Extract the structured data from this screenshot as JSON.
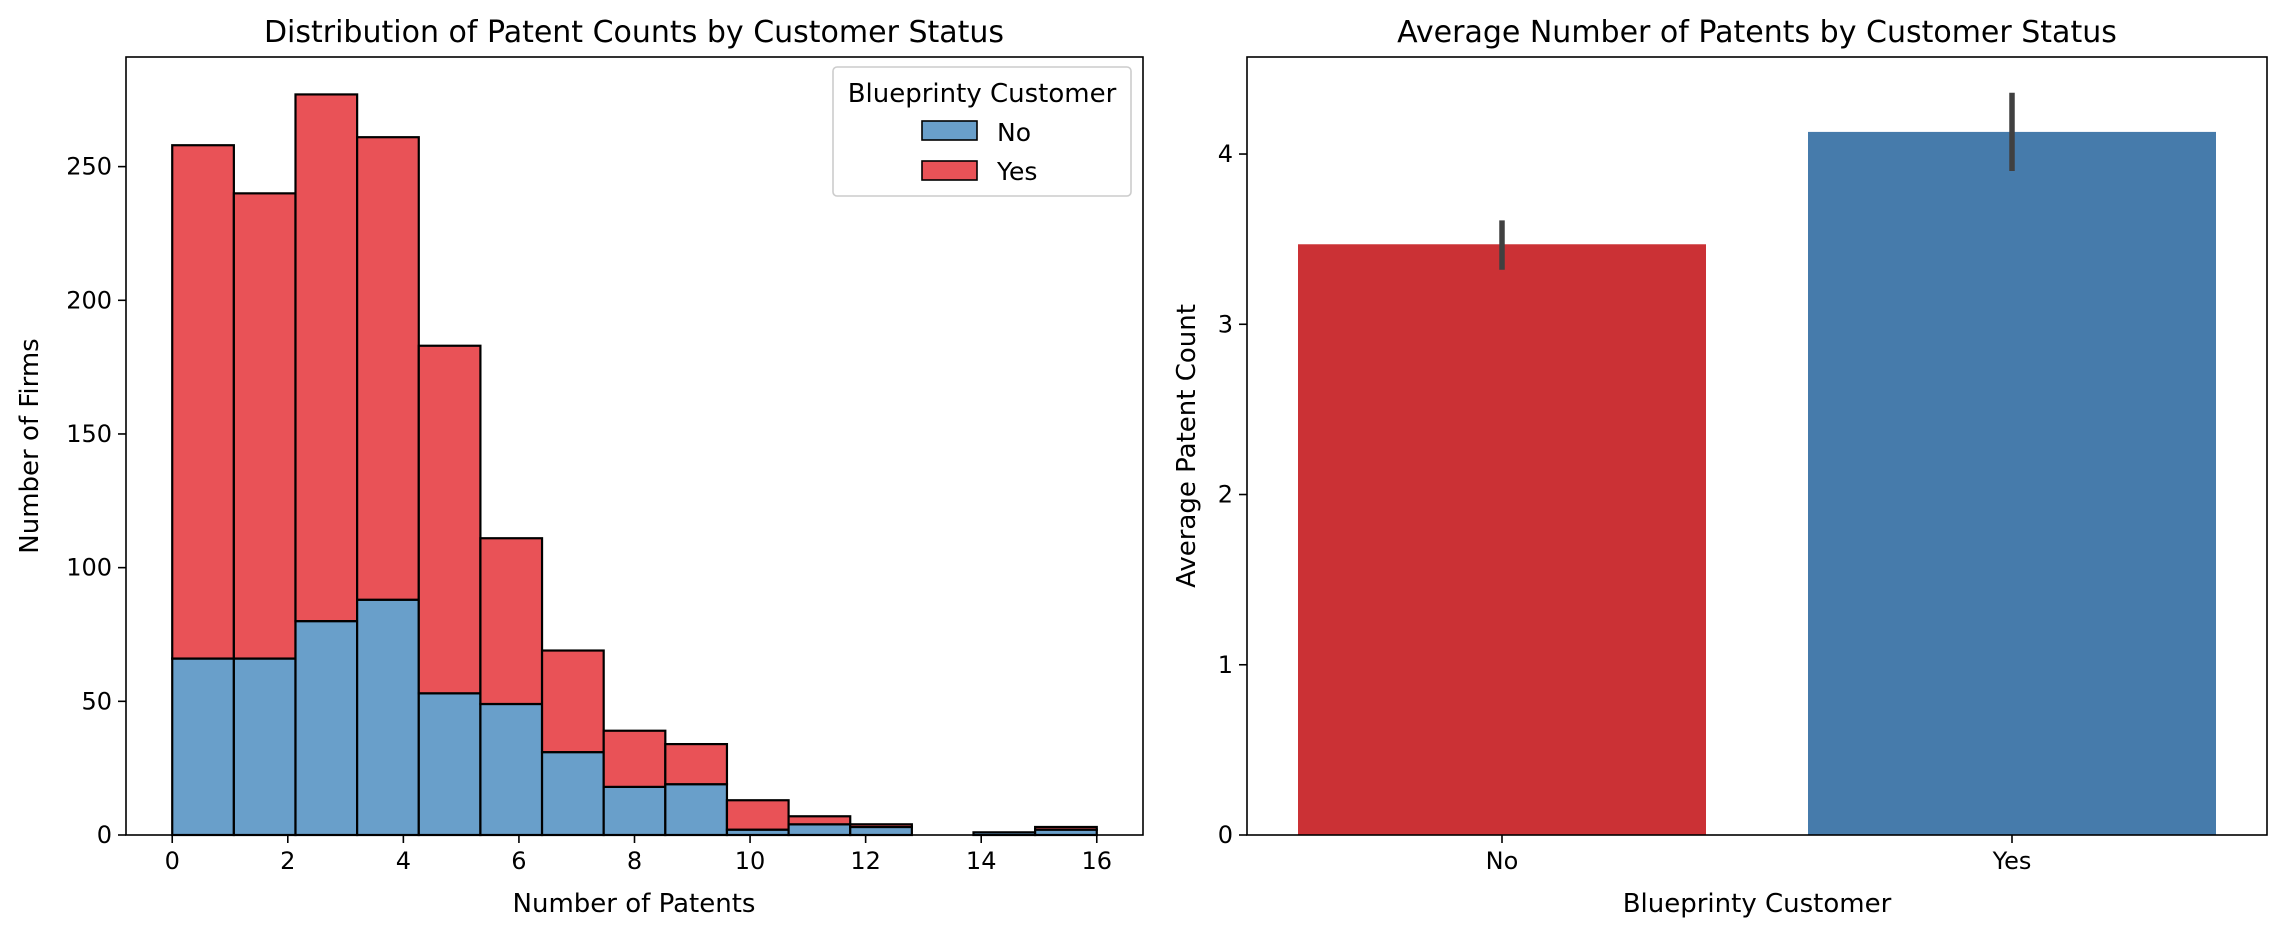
{
  "chart_data": [
    {
      "type": "bar",
      "subtype": "stacked-histogram",
      "title": "Distribution of Patent Counts by Customer Status",
      "xlabel": "Number of Patents",
      "ylabel": "Number of Firms",
      "xlim": [
        -0.8,
        16.8
      ],
      "ylim": [
        0,
        291
      ],
      "xticks": [
        0,
        2,
        4,
        6,
        8,
        10,
        12,
        14,
        16
      ],
      "yticks": [
        0,
        50,
        100,
        150,
        200,
        250
      ],
      "bin_edges": [
        0,
        1.0667,
        2.1333,
        3.2,
        4.2667,
        5.3333,
        6.4,
        7.4667,
        8.5333,
        9.6,
        10.6667,
        11.7333,
        12.8,
        13.8667,
        14.9333,
        16
      ],
      "legend": {
        "title": "Blueprinty Customer",
        "placement": "top-right"
      },
      "grid": false,
      "series": [
        {
          "name": "No",
          "color": "#699fca",
          "values": [
            66,
            66,
            80,
            88,
            53,
            49,
            31,
            18,
            19,
            2,
            4,
            3,
            0,
            1,
            2
          ]
        },
        {
          "name": "Yes",
          "color": "#e95257",
          "values": [
            192,
            174,
            197,
            173,
            130,
            62,
            38,
            21,
            15,
            11,
            3,
            1,
            0,
            0,
            1
          ]
        }
      ]
    },
    {
      "type": "bar",
      "title": "Average Number of Patents by Customer Status",
      "xlabel": "Blueprinty Customer",
      "ylabel": "Average Patent Count",
      "ylim": [
        0,
        4.57
      ],
      "yticks": [
        0,
        1,
        2,
        3,
        4
      ],
      "grid": false,
      "categories": [
        "No",
        "Yes"
      ],
      "values": [
        3.47,
        4.13
      ],
      "error_low": [
        3.32,
        3.9
      ],
      "error_high": [
        3.61,
        4.36
      ],
      "colors": [
        "#cb3135",
        "#467bab"
      ]
    }
  ]
}
